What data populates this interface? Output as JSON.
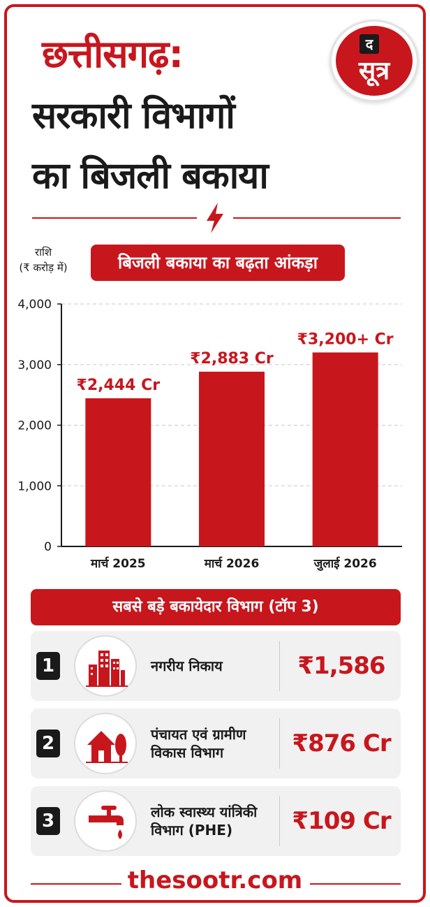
{
  "header": {
    "title_line1": "छत्तीसगढ़:",
    "title_line2": "सरकारी विभागों",
    "title_line3": "का बिजली बकाया"
  },
  "logo": {
    "top": "द",
    "main": "सूत्र"
  },
  "icons": {
    "divider": "lightning-bolt-icon"
  },
  "colors": {
    "accent": "#c8161d",
    "dark": "#1a1a1a",
    "row_bg": "#f1f1f1"
  },
  "chart_data": {
    "type": "bar",
    "title": "बिजली बकाया का बढ़ता आंकड़ा",
    "ylabel_line1": "राशि",
    "ylabel_line2": "(₹ करोड़ में)",
    "categories": [
      "मार्च 2025",
      "मार्च 2026",
      "जुलाई 2026"
    ],
    "values": [
      2444,
      2883,
      3200
    ],
    "value_labels": [
      "₹2,444 Cr",
      "₹2,883 Cr",
      "₹3,200+ Cr"
    ],
    "ylim": [
      0,
      4000
    ],
    "yticks": [
      0,
      1000,
      2000,
      3000,
      4000
    ],
    "ytick_labels": [
      "0",
      "1,000",
      "2,000",
      "3,000",
      "4,000"
    ],
    "grid": true,
    "bar_color": "#c8161d"
  },
  "top_departments": {
    "heading": "सबसे बड़े बकायेदार विभाग (टॉप 3)",
    "items": [
      {
        "rank": "1",
        "name": "नगरीय निकाय",
        "amount": "₹1,586 Cr",
        "icon": "city-buildings-icon"
      },
      {
        "rank": "2",
        "name": "पंचायत एवं ग्रामीण विकास विभाग",
        "amount": "₹876 Cr",
        "icon": "house-tree-icon"
      },
      {
        "rank": "3",
        "name": "लोक स्वास्थ्य यांत्रिकी विभाग (PHE)",
        "amount": "₹109 Cr",
        "icon": "water-tap-icon"
      }
    ]
  },
  "footer": {
    "site": "thesootr.com"
  }
}
